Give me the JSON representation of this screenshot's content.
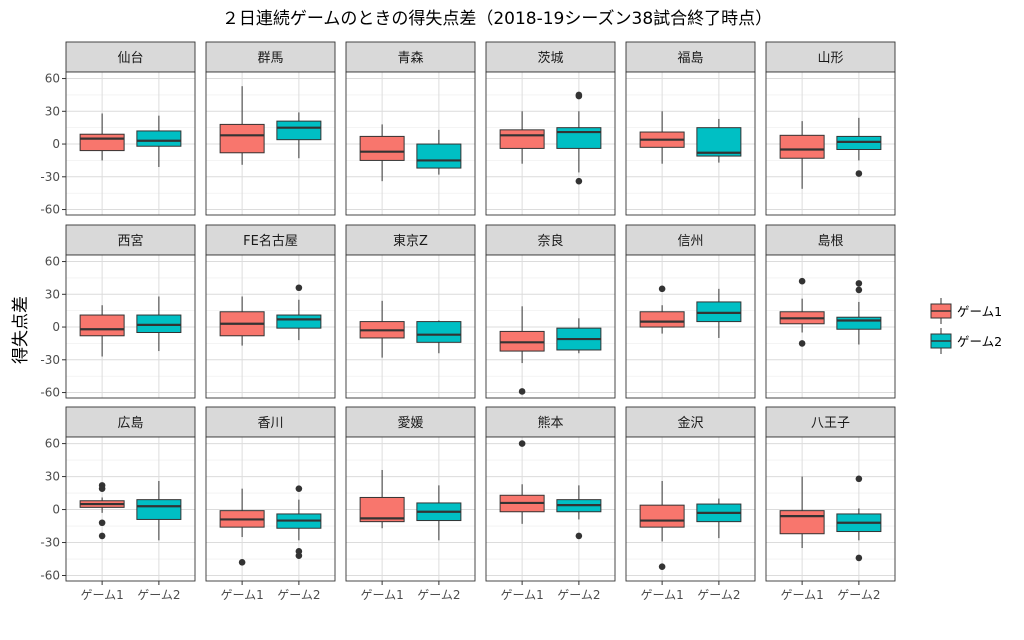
{
  "chart_data": {
    "type": "boxplot",
    "title": "２日連続ゲームのときの得失点差（2018-19シーズン38試合終了時点）",
    "ylabel": "得失点差",
    "xlabel": "",
    "categories": [
      "ゲーム1",
      "ゲーム2"
    ],
    "ylim": [
      -65,
      66
    ],
    "yticks": [
      60,
      30,
      0,
      -30,
      -60
    ],
    "grid": true,
    "legend": {
      "position": "right",
      "entries": [
        {
          "label": "ゲーム1",
          "color": "#F8766D"
        },
        {
          "label": "ゲーム2",
          "color": "#00BFC4"
        }
      ]
    },
    "panels": [
      {
        "team": "仙台",
        "boxes": [
          {
            "min": -15,
            "q1": -6,
            "median": 5,
            "q3": 9,
            "max": 28,
            "outliers": []
          },
          {
            "min": -21,
            "q1": -2,
            "median": 3,
            "q3": 12,
            "max": 26,
            "outliers": []
          }
        ]
      },
      {
        "team": "群馬",
        "boxes": [
          {
            "min": -19,
            "q1": -8,
            "median": 8,
            "q3": 18,
            "max": 53,
            "outliers": []
          },
          {
            "min": -13,
            "q1": 4,
            "median": 15,
            "q3": 21,
            "max": 29,
            "outliers": []
          }
        ]
      },
      {
        "team": "青森",
        "boxes": [
          {
            "min": -34,
            "q1": -15,
            "median": -7,
            "q3": 7,
            "max": 18,
            "outliers": []
          },
          {
            "min": -28,
            "q1": -22,
            "median": -15,
            "q3": 0,
            "max": 13,
            "outliers": []
          }
        ]
      },
      {
        "team": "茨城",
        "boxes": [
          {
            "min": -18,
            "q1": -4,
            "median": 8,
            "q3": 13,
            "max": 30,
            "outliers": []
          },
          {
            "min": -26,
            "q1": -4,
            "median": 11,
            "q3": 15,
            "max": 30,
            "outliers": [
              45,
              44,
              -34
            ]
          }
        ]
      },
      {
        "team": "福島",
        "boxes": [
          {
            "min": -18,
            "q1": -3,
            "median": 4,
            "q3": 11,
            "max": 30,
            "outliers": []
          },
          {
            "min": -17,
            "q1": -11,
            "median": -8,
            "q3": 15,
            "max": 23,
            "outliers": []
          }
        ]
      },
      {
        "team": "山形",
        "boxes": [
          {
            "min": -41,
            "q1": -13,
            "median": -5,
            "q3": 8,
            "max": 21,
            "outliers": []
          },
          {
            "min": -15,
            "q1": -5,
            "median": 2,
            "q3": 7,
            "max": 24,
            "outliers": [
              -27
            ]
          }
        ]
      },
      {
        "team": "西宮",
        "boxes": [
          {
            "min": -27,
            "q1": -8,
            "median": -2,
            "q3": 11,
            "max": 20,
            "outliers": []
          },
          {
            "min": -22,
            "q1": -5,
            "median": 2,
            "q3": 11,
            "max": 28,
            "outliers": []
          }
        ]
      },
      {
        "team": "FE名古屋",
        "boxes": [
          {
            "min": -17,
            "q1": -8,
            "median": 3,
            "q3": 14,
            "max": 28,
            "outliers": []
          },
          {
            "min": -12,
            "q1": -1,
            "median": 7,
            "q3": 11,
            "max": 25,
            "outliers": [
              36
            ]
          }
        ]
      },
      {
        "team": "東京Z",
        "boxes": [
          {
            "min": -28,
            "q1": -10,
            "median": -3,
            "q3": 5,
            "max": 24,
            "outliers": []
          },
          {
            "min": -24,
            "q1": -14,
            "median": -7,
            "q3": 5,
            "max": 6,
            "outliers": []
          }
        ]
      },
      {
        "team": "奈良",
        "boxes": [
          {
            "min": -33,
            "q1": -22,
            "median": -14,
            "q3": -4,
            "max": 19,
            "outliers": [
              -59
            ]
          },
          {
            "min": -24,
            "q1": -21,
            "median": -11,
            "q3": -1,
            "max": 8,
            "outliers": []
          }
        ]
      },
      {
        "team": "信州",
        "boxes": [
          {
            "min": -6,
            "q1": 0,
            "median": 5,
            "q3": 14,
            "max": 20,
            "outliers": [
              35
            ]
          },
          {
            "min": -10,
            "q1": 5,
            "median": 13,
            "q3": 23,
            "max": 35,
            "outliers": []
          }
        ]
      },
      {
        "team": "島根",
        "boxes": [
          {
            "min": -5,
            "q1": 3,
            "median": 8,
            "q3": 14,
            "max": 26,
            "outliers": [
              42,
              -15
            ]
          },
          {
            "min": -16,
            "q1": -2,
            "median": 6,
            "q3": 9,
            "max": 23,
            "outliers": [
              40,
              34
            ]
          }
        ]
      },
      {
        "team": "広島",
        "boxes": [
          {
            "min": -3,
            "q1": 2,
            "median": 5,
            "q3": 8,
            "max": 11,
            "outliers": [
              22,
              19,
              -12,
              -24
            ]
          },
          {
            "min": -28,
            "q1": -9,
            "median": 3,
            "q3": 9,
            "max": 26,
            "outliers": []
          }
        ]
      },
      {
        "team": "香川",
        "boxes": [
          {
            "min": -25,
            "q1": -16,
            "median": -9,
            "q3": -1,
            "max": 19,
            "outliers": [
              -48
            ]
          },
          {
            "min": -28,
            "q1": -17,
            "median": -10,
            "q3": -4,
            "max": 9,
            "outliers": [
              19,
              -38,
              -42
            ]
          }
        ]
      },
      {
        "team": "愛媛",
        "boxes": [
          {
            "min": -17,
            "q1": -11,
            "median": -8,
            "q3": 11,
            "max": 36,
            "outliers": []
          },
          {
            "min": -28,
            "q1": -10,
            "median": -2,
            "q3": 6,
            "max": 22,
            "outliers": []
          }
        ]
      },
      {
        "team": "熊本",
        "boxes": [
          {
            "min": -13,
            "q1": -2,
            "median": 6,
            "q3": 13,
            "max": 23,
            "outliers": [
              60
            ]
          },
          {
            "min": -9,
            "q1": -2,
            "median": 4,
            "q3": 9,
            "max": 22,
            "outliers": [
              -24
            ]
          }
        ]
      },
      {
        "team": "金沢",
        "boxes": [
          {
            "min": -29,
            "q1": -16,
            "median": -10,
            "q3": 4,
            "max": 26,
            "outliers": [
              -52
            ]
          },
          {
            "min": -26,
            "q1": -11,
            "median": -3,
            "q3": 5,
            "max": 10,
            "outliers": []
          }
        ]
      },
      {
        "team": "八王子",
        "boxes": [
          {
            "min": -35,
            "q1": -22,
            "median": -6,
            "q3": -1,
            "max": 30,
            "outliers": []
          },
          {
            "min": -28,
            "q1": -20,
            "median": -12,
            "q3": -4,
            "max": 1,
            "outliers": [
              28,
              -44
            ]
          }
        ]
      }
    ]
  }
}
